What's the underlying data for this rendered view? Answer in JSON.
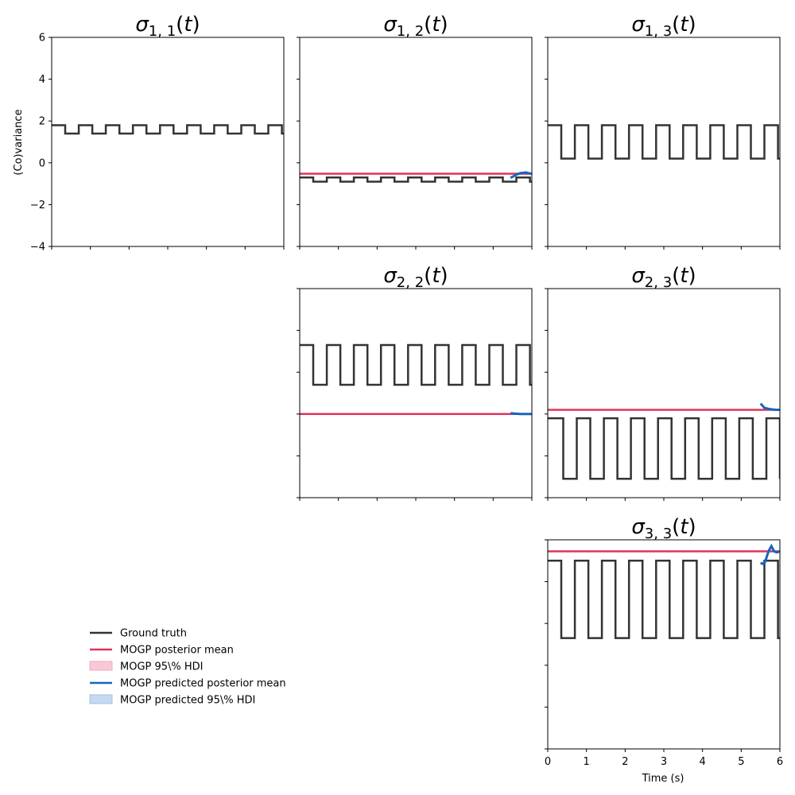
{
  "chart_data": {
    "type": "line",
    "ylabel": "(Co)variance",
    "xlabel": "Time (s)",
    "xlim": [
      0,
      6
    ],
    "ylim": [
      -4,
      6
    ],
    "xticks": [
      0,
      1,
      2,
      3,
      4,
      5,
      6
    ],
    "yticks": [
      -4,
      -2,
      0,
      2,
      4,
      6
    ],
    "colors": {
      "ground_truth": "#333333",
      "posterior_mean": "#e0335a",
      "posterior_hdi": "#f7c9d6",
      "predicted_mean": "#1565c0",
      "predicted_hdi": "#c5d9f0"
    },
    "legend": [
      {
        "key": "ground_truth",
        "label": "Ground truth",
        "style": "line"
      },
      {
        "key": "posterior_mean",
        "label": "MOGP posterior mean",
        "style": "line"
      },
      {
        "key": "posterior_hdi",
        "label": "MOGP 95\\% HDI",
        "style": "patch"
      },
      {
        "key": "predicted_mean",
        "label": "MOGP predicted posterior mean",
        "style": "line"
      },
      {
        "key": "predicted_hdi",
        "label": "MOGP predicted 95\\% HDI",
        "style": "patch"
      }
    ],
    "panels": [
      {
        "id": "s11",
        "row": 0,
        "col": 0,
        "title_sub": "1, 1",
        "ground_truth": {
          "high": 1.8,
          "low": 1.4,
          "period": 0.7,
          "first_drop": 0.35
        },
        "posterior_mean": null,
        "predicted_mean": null
      },
      {
        "id": "s12",
        "row": 0,
        "col": 1,
        "title_sub": "1, 2",
        "ground_truth": {
          "high": -0.7,
          "low": -0.9,
          "period": 0.7,
          "first_drop": 0.35
        },
        "posterior_mean": -0.52,
        "predicted_mean": {
          "x": [
            5.45,
            5.55,
            5.62,
            5.7,
            5.78,
            5.85,
            5.92,
            6.0
          ],
          "y": [
            -0.72,
            -0.62,
            -0.55,
            -0.5,
            -0.48,
            -0.46,
            -0.5,
            -0.52
          ]
        }
      },
      {
        "id": "s13",
        "row": 0,
        "col": 2,
        "title_sub": "1, 3",
        "ground_truth": {
          "high": 1.8,
          "low": 0.2,
          "period": 0.7,
          "first_drop": 0.35
        },
        "posterior_mean": null,
        "predicted_mean": null
      },
      {
        "id": "s22",
        "row": 1,
        "col": 1,
        "title_sub": "2, 2",
        "ground_truth": {
          "high": 3.3,
          "low": 1.4,
          "period": 0.7,
          "first_drop": 0.35
        },
        "posterior_mean": 0.0,
        "predicted_mean": {
          "x": [
            5.45,
            5.55,
            5.7,
            5.85,
            6.0
          ],
          "y": [
            0.04,
            0.02,
            0.0,
            0.0,
            0.0
          ]
        }
      },
      {
        "id": "s23",
        "row": 1,
        "col": 2,
        "title_sub": "2, 3",
        "ground_truth": {
          "high": -0.2,
          "low": -3.1,
          "period": 0.7,
          "first_drop": 0.4
        },
        "posterior_mean": 0.2,
        "predicted_mean": {
          "x": [
            5.5,
            5.6,
            5.7,
            5.8,
            5.9,
            6.0
          ],
          "y": [
            0.5,
            0.3,
            0.25,
            0.22,
            0.2,
            0.2
          ]
        }
      },
      {
        "id": "s33",
        "row": 2,
        "col": 2,
        "title_sub": "3, 3",
        "ground_truth": {
          "high": 5.0,
          "low": 1.3,
          "period": 0.7,
          "first_drop": 0.35
        },
        "posterior_mean": 5.45,
        "predicted_mean": {
          "x": [
            5.5,
            5.55,
            5.62,
            5.68,
            5.72,
            5.78,
            5.85,
            5.92,
            6.0
          ],
          "y": [
            4.9,
            4.85,
            4.95,
            5.3,
            5.5,
            5.7,
            5.45,
            5.4,
            5.45
          ]
        }
      }
    ]
  }
}
